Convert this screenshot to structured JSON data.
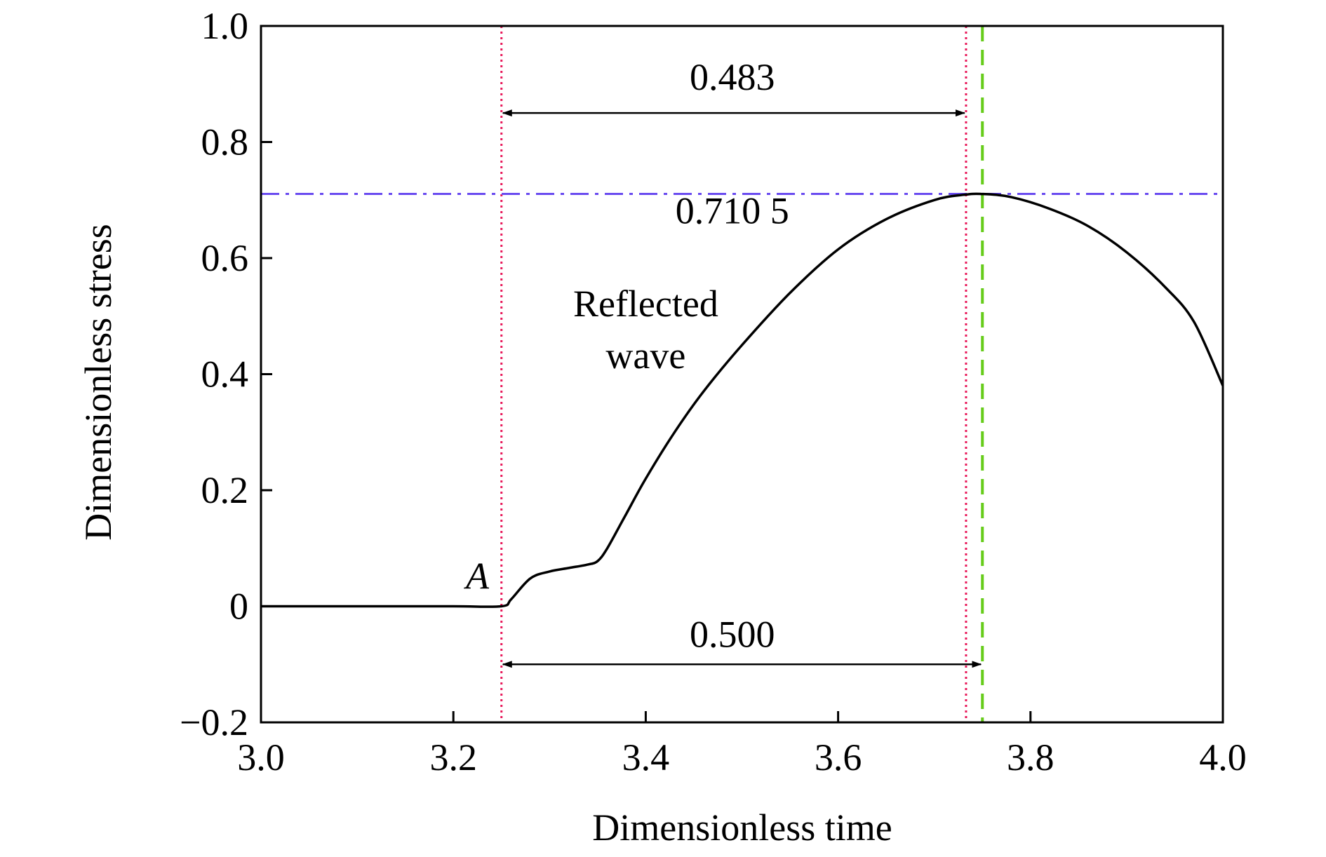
{
  "chart_data": {
    "type": "line",
    "xlabel": "Dimensionless time",
    "ylabel": "Dimensionless stress",
    "xlim": [
      3.0,
      4.0
    ],
    "ylim": [
      -0.2,
      1.0
    ],
    "x_ticks": [
      3.0,
      3.2,
      3.4,
      3.6,
      3.8,
      4.0
    ],
    "x_tick_labels": [
      "3.0",
      "3.2",
      "3.4",
      "3.6",
      "3.8",
      "4.0"
    ],
    "y_ticks": [
      -0.2,
      0,
      0.2,
      0.4,
      0.6,
      0.8,
      1.0
    ],
    "y_tick_labels": [
      "−0.2",
      "0",
      "0.2",
      "0.4",
      "0.6",
      "0.8",
      "1.0"
    ],
    "grid": false,
    "series": [
      {
        "color": "#000000",
        "x": [
          3.0,
          3.1,
          3.2,
          3.25,
          3.26,
          3.28,
          3.3,
          3.32,
          3.34,
          3.35,
          3.36,
          3.38,
          3.4,
          3.43,
          3.46,
          3.5,
          3.55,
          3.6,
          3.65,
          3.7,
          3.73,
          3.75,
          3.78,
          3.82,
          3.86,
          3.9,
          3.94,
          3.97,
          4.0
        ],
        "y": [
          0.0,
          0.0,
          0.0,
          0.0,
          0.012,
          0.048,
          0.06,
          0.066,
          0.072,
          0.078,
          0.1,
          0.16,
          0.22,
          0.3,
          0.37,
          0.45,
          0.54,
          0.615,
          0.667,
          0.7,
          0.709,
          0.7105,
          0.705,
          0.685,
          0.655,
          0.61,
          0.55,
          0.49,
          0.38
        ]
      }
    ],
    "reference_lines": [
      {
        "orientation": "vertical",
        "value": 3.25,
        "style": "dotted",
        "color": "#e8195a"
      },
      {
        "orientation": "vertical",
        "value": 3.733,
        "style": "dotted",
        "color": "#e8195a"
      },
      {
        "orientation": "vertical",
        "value": 3.75,
        "style": "dashed",
        "color": "#66cc1a"
      },
      {
        "orientation": "horizontal",
        "value": 0.7105,
        "style": "dash-dot",
        "color": "#6a4cf0"
      }
    ],
    "annotations": [
      {
        "text": "0.483",
        "x": 3.49,
        "y": 0.89
      },
      {
        "text": "0.710 5",
        "x": 3.49,
        "y": 0.66
      },
      {
        "text": "Reflected",
        "x": 3.4,
        "y": 0.5
      },
      {
        "text": "wave",
        "x": 3.4,
        "y": 0.41
      },
      {
        "text": "A",
        "x": 3.225,
        "y": 0.03
      },
      {
        "text": "0.500",
        "x": 3.49,
        "y": -0.07
      }
    ],
    "dimension_arrows": [
      {
        "from": 3.25,
        "to": 3.733,
        "y": 0.85,
        "label": "0.483"
      },
      {
        "from": 3.25,
        "to": 3.75,
        "y": -0.1,
        "label": "0.500"
      }
    ]
  }
}
